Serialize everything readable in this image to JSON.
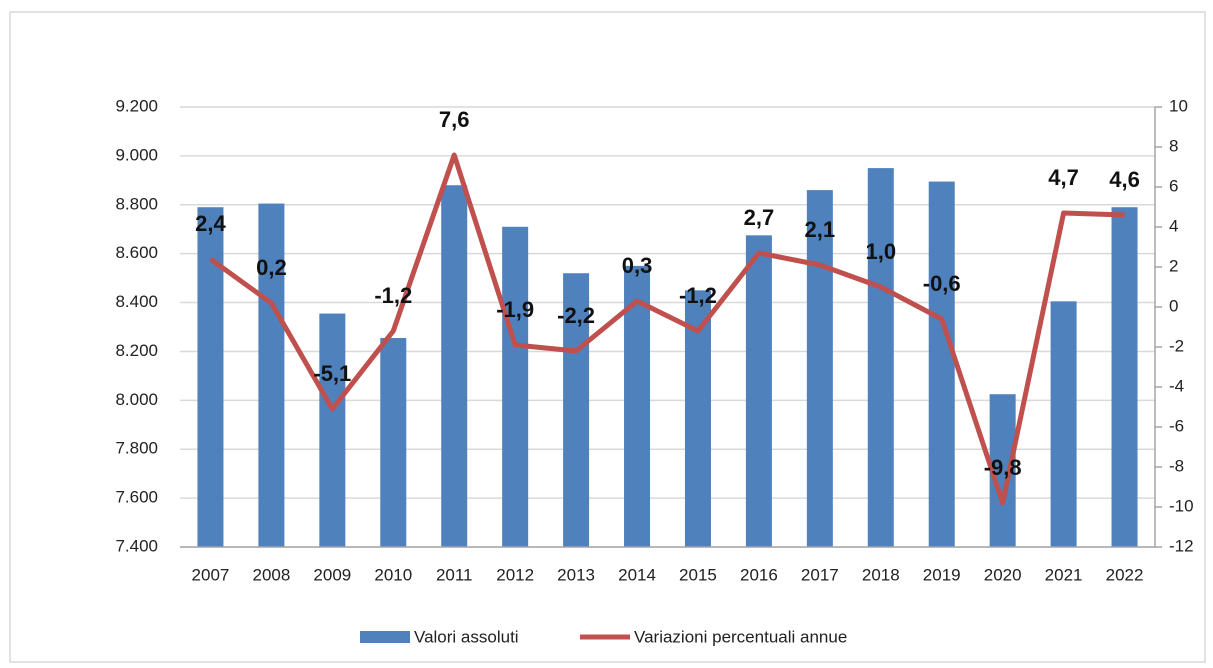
{
  "chart_data": {
    "type": "bar-line",
    "categories": [
      "2007",
      "2008",
      "2009",
      "2010",
      "2011",
      "2012",
      "2013",
      "2014",
      "2015",
      "2016",
      "2017",
      "2018",
      "2019",
      "2020",
      "2021",
      "2022"
    ],
    "series": [
      {
        "name": "Valori assoluti",
        "type": "bar",
        "color": "#4f81bd",
        "axis": "y",
        "values": [
          8790,
          8805,
          8355,
          8255,
          8880,
          8710,
          8520,
          8550,
          8450,
          8675,
          8860,
          8950,
          8895,
          8025,
          8405,
          8790
        ]
      },
      {
        "name": "Variazioni percentuali annue",
        "type": "line",
        "color": "#c0504d",
        "axis": "y2",
        "values": [
          2.4,
          0.2,
          -5.1,
          -1.2,
          7.6,
          -1.9,
          -2.2,
          0.3,
          -1.2,
          2.7,
          2.1,
          1.0,
          -0.6,
          -9.8,
          4.7,
          4.6
        ],
        "value_labels": [
          "2,4",
          "0,2",
          "-5,1",
          "-1,2",
          "7,6",
          "-1,9",
          "-2,2",
          "0,3",
          "-1,2",
          "2,7",
          "2,1",
          "1,0",
          "-0,6",
          "-9,8",
          "4,7",
          "4,6"
        ]
      }
    ],
    "ylim": [
      7400,
      9200
    ],
    "yticks": [
      {
        "value": 7400,
        "label": "7.400"
      },
      {
        "value": 7600,
        "label": "7.600"
      },
      {
        "value": 7800,
        "label": "7.800"
      },
      {
        "value": 8000,
        "label": "8.000"
      },
      {
        "value": 8200,
        "label": "8.200"
      },
      {
        "value": 8400,
        "label": "8.400"
      },
      {
        "value": 8600,
        "label": "8.600"
      },
      {
        "value": 8800,
        "label": "8.800"
      },
      {
        "value": 9000,
        "label": "9.000"
      },
      {
        "value": 9200,
        "label": "9.200"
      }
    ],
    "y2lim": [
      -12,
      10
    ],
    "y2ticks": [
      -12,
      -10,
      -8,
      -6,
      -4,
      -2,
      0,
      2,
      4,
      6,
      8,
      10
    ],
    "grid": true,
    "legend": "bottom"
  }
}
